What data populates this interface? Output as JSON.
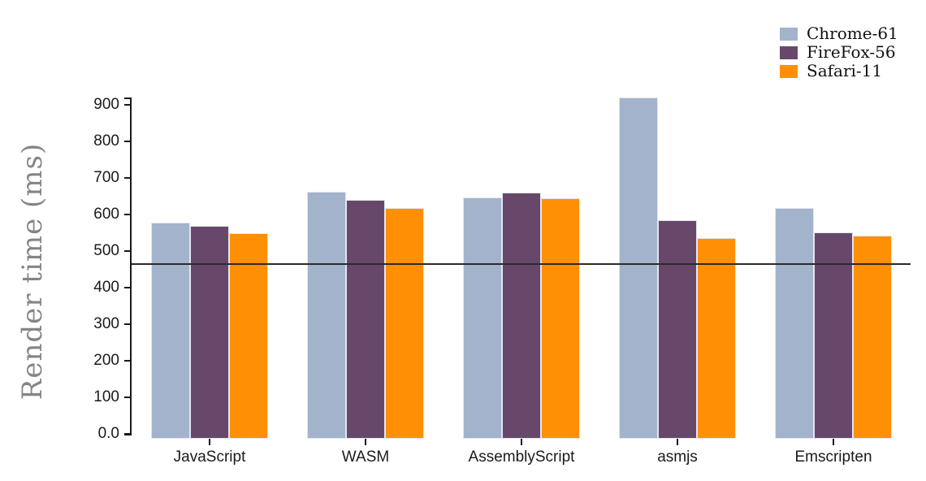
{
  "chart_data": {
    "type": "bar",
    "title": "",
    "ylabel": "Render time (ms)",
    "xlabel": "",
    "categories": [
      "JavaScript",
      "WASM",
      "AssemblyScript",
      "asmjs",
      "Emscripten"
    ],
    "series": [
      {
        "name": "Chrome-61",
        "color": "#a3b3cc",
        "values": [
          578,
          663,
          646,
          920,
          617
        ]
      },
      {
        "name": "FireFox-56",
        "color": "#67486a",
        "values": [
          570,
          641,
          660,
          584,
          551
        ]
      },
      {
        "name": "Safari-11",
        "color": "#ff9005",
        "values": [
          549,
          617,
          644,
          535,
          543
        ]
      }
    ],
    "yticks": [
      {
        "value": 0,
        "label": "0.0"
      },
      {
        "value": 100,
        "label": "100"
      },
      {
        "value": 200,
        "label": "200"
      },
      {
        "value": 300,
        "label": "300"
      },
      {
        "value": 400,
        "label": "400"
      },
      {
        "value": 500,
        "label": "500"
      },
      {
        "value": 600,
        "label": "600"
      },
      {
        "value": 700,
        "label": "700"
      },
      {
        "value": 800,
        "label": "800"
      },
      {
        "value": 900,
        "label": "900"
      }
    ],
    "ylim": [
      0,
      920
    ],
    "reference_line": {
      "value": 465,
      "color": "#2b2b2b"
    },
    "legend_position": "top-right",
    "grid": false,
    "colors": {
      "axis": "#1a1a1a",
      "tick_label": "#1a1a1a",
      "y_title": "#858585",
      "background": "#ffffff"
    }
  }
}
